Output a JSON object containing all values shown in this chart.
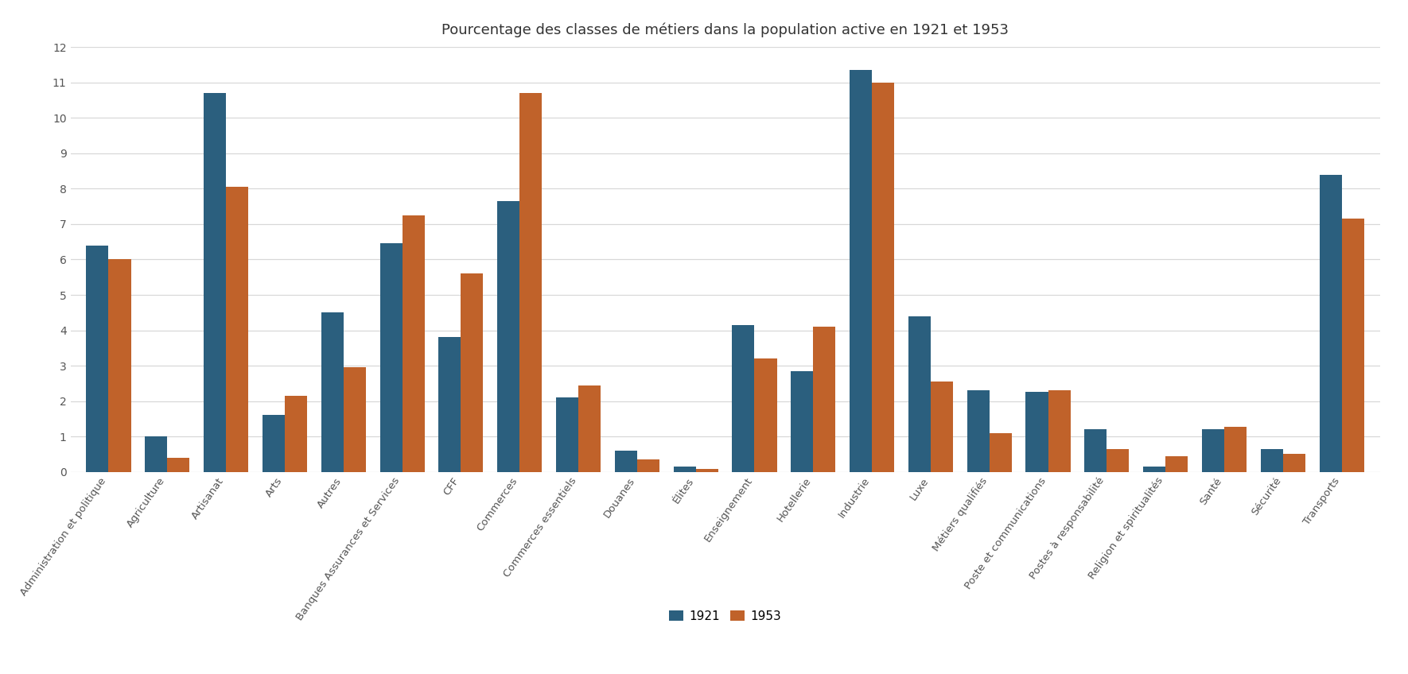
{
  "title": "Pourcentage des classes de métiers dans la population active en 1921 et 1953",
  "categories": [
    "Administration et politique",
    "Agriculture",
    "Artisanat",
    "Arts",
    "Autres",
    "Banques Assurances et Services",
    "CFF",
    "Commerces",
    "Commerces essentiels",
    "Douanes",
    "Élites",
    "Enseignement",
    "Hotellerie",
    "Industrie",
    "Luxe",
    "Métiers qualifiés",
    "Poste et communications",
    "Postes à responsabilité",
    "Religion et spiritualités",
    "Santé",
    "Sécurité",
    "Transports"
  ],
  "values_1921": [
    6.4,
    1.0,
    10.7,
    1.6,
    4.5,
    6.45,
    3.8,
    7.65,
    2.1,
    0.6,
    0.15,
    4.15,
    2.85,
    11.35,
    4.4,
    2.3,
    2.25,
    1.2,
    0.15,
    1.2,
    0.65,
    8.4
  ],
  "values_1953": [
    6.0,
    0.4,
    8.05,
    2.15,
    2.95,
    7.25,
    5.6,
    10.7,
    2.45,
    0.35,
    0.08,
    3.2,
    4.1,
    11.0,
    2.55,
    1.1,
    2.3,
    0.65,
    0.45,
    1.28,
    0.5,
    7.15
  ],
  "color_1921": "#2b5f7e",
  "color_1953": "#c0622a",
  "legend_labels": [
    "1921",
    "1953"
  ],
  "ylim": [
    0,
    12
  ],
  "yticks": [
    0,
    1,
    2,
    3,
    4,
    5,
    6,
    7,
    8,
    9,
    10,
    11,
    12
  ],
  "bar_width": 0.38,
  "background_color": "#ffffff",
  "grid_color": "#d8d8d8",
  "title_fontsize": 13
}
